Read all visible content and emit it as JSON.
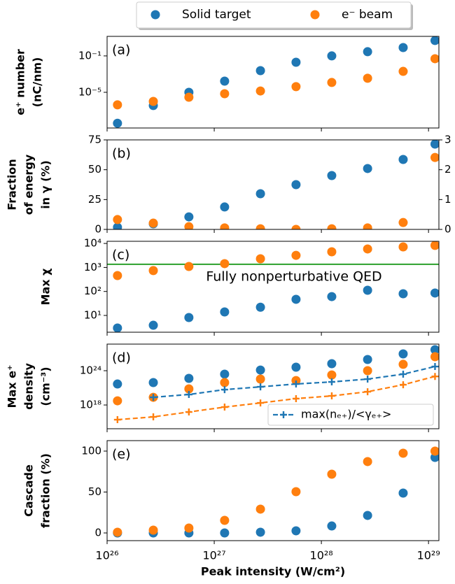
{
  "chart_data": [
    {
      "type": "scatter",
      "label": "(a)",
      "ylabel": [
        "e⁺ number",
        "(nC/nm)"
      ],
      "yscale": "log",
      "legend": "above",
      "ylim": [
        1.2e-09,
        14
      ],
      "yticks": [
        {
          "value": 0.1,
          "label": "10⁻¹"
        },
        {
          "value": 1e-05,
          "label": "10⁻⁵"
        }
      ],
      "x": [
        1.25e+26,
        2.7e+26,
        5.8e+26,
        1.25e+27,
        2.7e+27,
        5.8e+27,
        1.25e+28,
        2.7e+28,
        5.8e+28,
        1.15e+29
      ],
      "series": [
        {
          "name": "Solid target",
          "color": "#1f77b4",
          "values": [
            4e-09,
            3.5e-07,
            1e-05,
            0.00017,
            0.0024,
            0.02,
            0.1,
            0.29,
            0.83,
            4.9
          ]
        },
        {
          "name": "e⁻ beam",
          "color": "#ff7f0e",
          "values": [
            4.2e-07,
            1e-06,
            2.9e-06,
            7e-06,
            1.4e-05,
            4.2e-05,
            0.00012,
            0.00035,
            0.002,
            0.049
          ]
        }
      ]
    },
    {
      "type": "scatter",
      "label": "(b)",
      "ylabel": [
        "Fraction",
        "of energy",
        "in γ (%)"
      ],
      "ylim": [
        0,
        75
      ],
      "yticks": [
        0,
        25,
        50,
        75
      ],
      "y2lim": [
        0,
        3
      ],
      "y2ticks": [
        0,
        1,
        2,
        3
      ],
      "x": [
        1.25e+26,
        2.7e+26,
        5.8e+26,
        1.25e+27,
        2.7e+27,
        5.8e+27,
        1.25e+28,
        2.7e+28,
        5.8e+28,
        1.15e+29
      ],
      "series": [
        {
          "color": "#1f77b4",
          "values": [
            1.8,
            4.7,
            10.5,
            18.8,
            29.9,
            37.5,
            45.1,
            51,
            58.6,
            71.5
          ]
        },
        {
          "color": "#ff7f0e",
          "axis": "y2",
          "values": [
            0.33,
            0.21,
            0.09,
            0.05,
            0.02,
            0,
            0.02,
            0.05,
            0.23,
            2.41
          ]
        }
      ]
    },
    {
      "type": "scatter",
      "label": "(c)",
      "ylabel": [
        "Max χ"
      ],
      "yscale": "log",
      "ylim": [
        2,
        12300
      ],
      "yticks": [
        {
          "value": 10,
          "label": "10¹"
        },
        {
          "value": 100,
          "label": "10²"
        },
        {
          "value": 1000,
          "label": "10³"
        },
        {
          "value": 10000,
          "label": "10⁴"
        }
      ],
      "hlines": [
        {
          "value": 1350,
          "label": "Fully nonperturbative QED",
          "color": "#2ca02c"
        }
      ],
      "x": [
        1.25e+26,
        2.7e+26,
        5.8e+26,
        1.25e+27,
        2.7e+27,
        5.8e+27,
        1.25e+28,
        2.7e+28,
        5.8e+28,
        1.15e+29
      ],
      "series": [
        {
          "color": "#1f77b4",
          "values": [
            3,
            3.9,
            8.2,
            14,
            22,
            47,
            61,
            112,
            80,
            86
          ]
        },
        {
          "color": "#ff7f0e",
          "values": [
            460,
            740,
            1100,
            1440,
            2300,
            3200,
            4500,
            5900,
            7200,
            8300
          ]
        }
      ]
    },
    {
      "type": "scatter",
      "label": "(d)",
      "ylabel": [
        "Max e⁺",
        "density",
        "(cm⁻³)"
      ],
      "yscale": "log",
      "legend": "lower right",
      "ylim": [
        70000000000000.0,
        4.5e+28
      ],
      "yticks": [
        {
          "value": 1e+18,
          "label": "10¹⁸"
        },
        {
          "value": 1e+24,
          "label": "10²⁴"
        }
      ],
      "x": [
        1.25e+26,
        2.7e+26,
        5.8e+26,
        1.25e+27,
        2.7e+27,
        5.8e+27,
        1.25e+28,
        2.7e+28,
        5.8e+28,
        1.15e+29
      ],
      "series": [
        {
          "color": "#1f77b4",
          "values": [
            4.7e+21,
            8.3e+21,
            4.5e+22,
            2.5e+23,
            1.3e+24,
            4.1e+24,
            1.7e+25,
            9.1e+25,
            8.7e+26,
            4.7e+27
          ]
        },
        {
          "color": "#ff7f0e",
          "values": [
            5.4e+18,
            2.2e+19,
            6.6e+20,
            8.3e+21,
            3.4e+22,
            1.9e+22,
            1.8e+23,
            1e+24,
            1.3e+25,
            2.8e+26
          ]
        },
        {
          "name": "max(nₑ₊)/<γₑ₊>",
          "color": "#1f77b4",
          "mode": "dashed-plus",
          "values": [
            null,
            2.2e+19,
            6.9e+19,
            4.9e+20,
            1.5e+21,
            4.7e+21,
            1.1e+22,
            3.4e+22,
            2.5e+23,
            5.4e+24
          ]
        },
        {
          "color": "#ff7f0e",
          "mode": "dashed-plus",
          "values": [
            2700000000000000.0,
            8300000000000000.0,
            6e+16,
            4.3e+17,
            2.3e+18,
            1.3e+19,
            3.9e+19,
            2.1e+20,
            3.5e+21,
            1e+23
          ]
        }
      ]
    },
    {
      "type": "scatter",
      "label": "(e)",
      "ylabel": [
        "Cascade",
        "fraction (%)"
      ],
      "ylim": [
        -9.4,
        112.8
      ],
      "yticks": [
        0,
        50,
        100
      ],
      "x": [
        1.25e+26,
        2.7e+26,
        5.8e+26,
        1.25e+27,
        2.7e+27,
        5.8e+27,
        1.25e+28,
        2.7e+28,
        5.8e+28,
        1.15e+29
      ],
      "xscale": "log",
      "xlim": [
        1e+26,
        1.25e+29
      ],
      "xlabel": "Peak intensity (W/cm²)",
      "xticks": [
        {
          "value": 1e+26,
          "label": "10²⁶"
        },
        {
          "value": 1e+27,
          "label": "10²⁷"
        },
        {
          "value": 1e+28,
          "label": "10²⁸"
        },
        {
          "value": 1e+29,
          "label": "10²⁹"
        }
      ],
      "series": [
        {
          "color": "#1f77b4",
          "values": [
            0,
            0,
            0,
            0,
            0.9,
            2.6,
            8.5,
            21.4,
            48.7,
            92.3
          ]
        },
        {
          "color": "#ff7f0e",
          "values": [
            0.9,
            3.4,
            6,
            15.4,
            29.1,
            50.4,
            71.8,
            87.2,
            97.4,
            100
          ]
        }
      ]
    }
  ]
}
